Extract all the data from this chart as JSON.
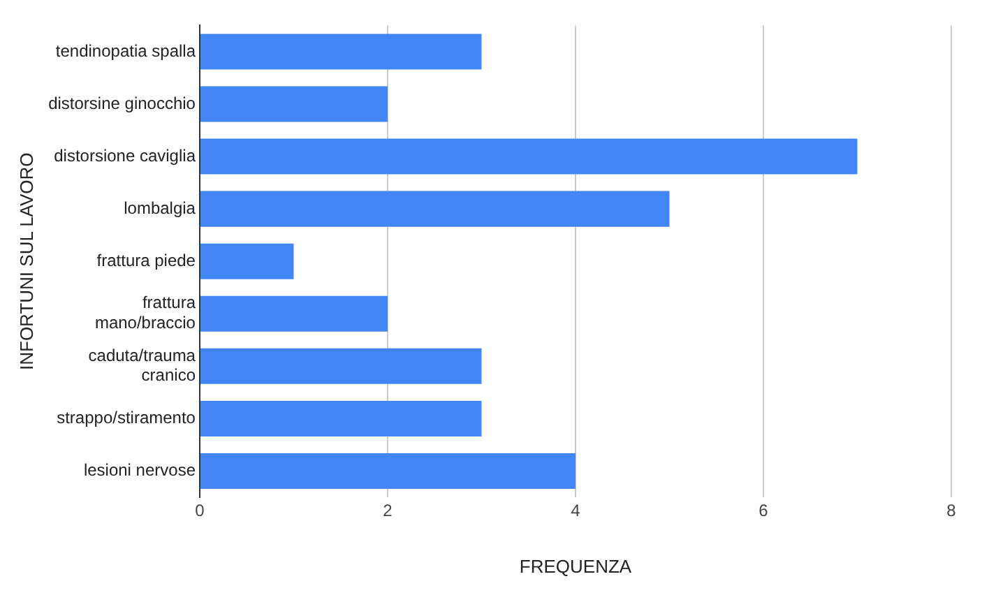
{
  "chart_data": {
    "type": "bar",
    "orientation": "horizontal",
    "xlabel": "FREQUENZA",
    "ylabel": "INFORTUNI SUL LAVORO",
    "categories": [
      "tendinopatia spalla",
      "distorsine ginocchio",
      "distorsione caviglia",
      "lombalgia",
      "frattura piede",
      "frattura mano/braccio",
      "caduta/trauma cranico",
      "strappo/stiramento",
      "lesioni nervose"
    ],
    "values": [
      3,
      2,
      7,
      5,
      1,
      2,
      3,
      3,
      4
    ],
    "color": "#4285f4",
    "xlim": [
      0,
      8
    ],
    "xticks": [
      0,
      2,
      4,
      6,
      8
    ],
    "grid": "x",
    "legend": false
  }
}
